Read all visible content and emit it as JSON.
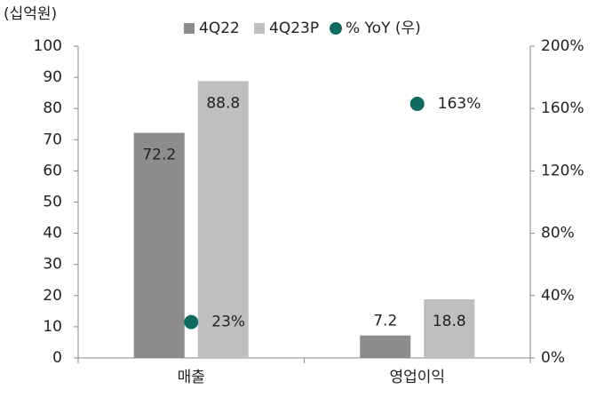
{
  "chart_data": {
    "type": "bar",
    "unit_label": "(십억원)",
    "categories": [
      "매출",
      "영업이익"
    ],
    "series": [
      {
        "name": "4Q22",
        "color": "#8c8c8c",
        "values": [
          72.2,
          7.2
        ]
      },
      {
        "name": "4Q23P",
        "color": "#bfbfbf",
        "values": [
          88.8,
          18.8
        ]
      },
      {
        "name": "% YoY (우)",
        "type": "scatter",
        "axis": "y2",
        "color": "#0d6b5f",
        "values": [
          23,
          163
        ],
        "value_labels": [
          "23%",
          "163%"
        ]
      }
    ],
    "ylim": [
      0,
      100
    ],
    "yticks": [
      0,
      10,
      20,
      30,
      40,
      50,
      60,
      70,
      80,
      90,
      100
    ],
    "y2lim": [
      0,
      200
    ],
    "y2ticks": [
      {
        "value": 0,
        "label": "0%"
      },
      {
        "value": 40,
        "label": "40%"
      },
      {
        "value": 80,
        "label": "80%"
      },
      {
        "value": 120,
        "label": "120%"
      },
      {
        "value": 160,
        "label": "160%"
      },
      {
        "value": 200,
        "label": "200%"
      }
    ],
    "legend": "top"
  }
}
